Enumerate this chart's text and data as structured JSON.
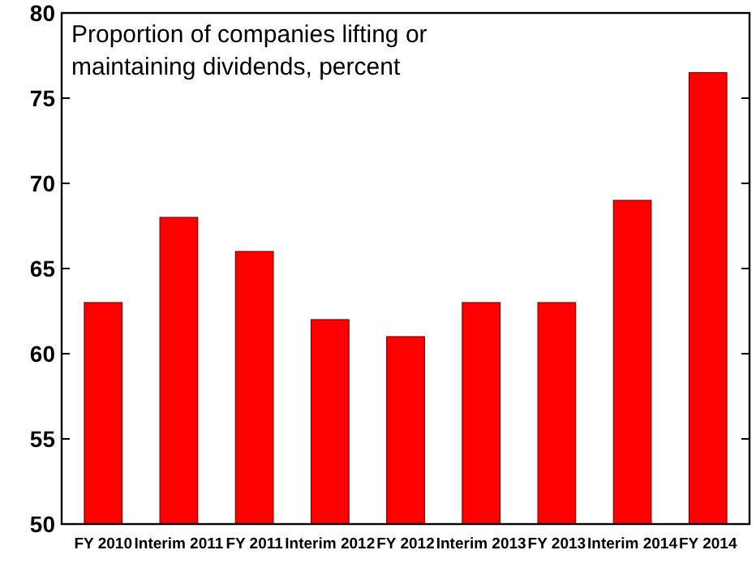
{
  "chart_data": {
    "type": "bar",
    "title": "Proportion of companies lifting or maintaining dividends, percent",
    "categories": [
      "FY 2010",
      "Interim 2011",
      "FY 2011",
      "Interim 2012",
      "FY 2012",
      "Interim 2013",
      "FY 2013",
      "Interim 2014",
      "FY 2014"
    ],
    "values": [
      63,
      68,
      66,
      62,
      61,
      63,
      63,
      69,
      76.5
    ],
    "color": "#ff0000",
    "ylim": [
      50,
      80
    ],
    "yticks": [
      50,
      55,
      60,
      65,
      70,
      75,
      80
    ],
    "grid": false
  }
}
